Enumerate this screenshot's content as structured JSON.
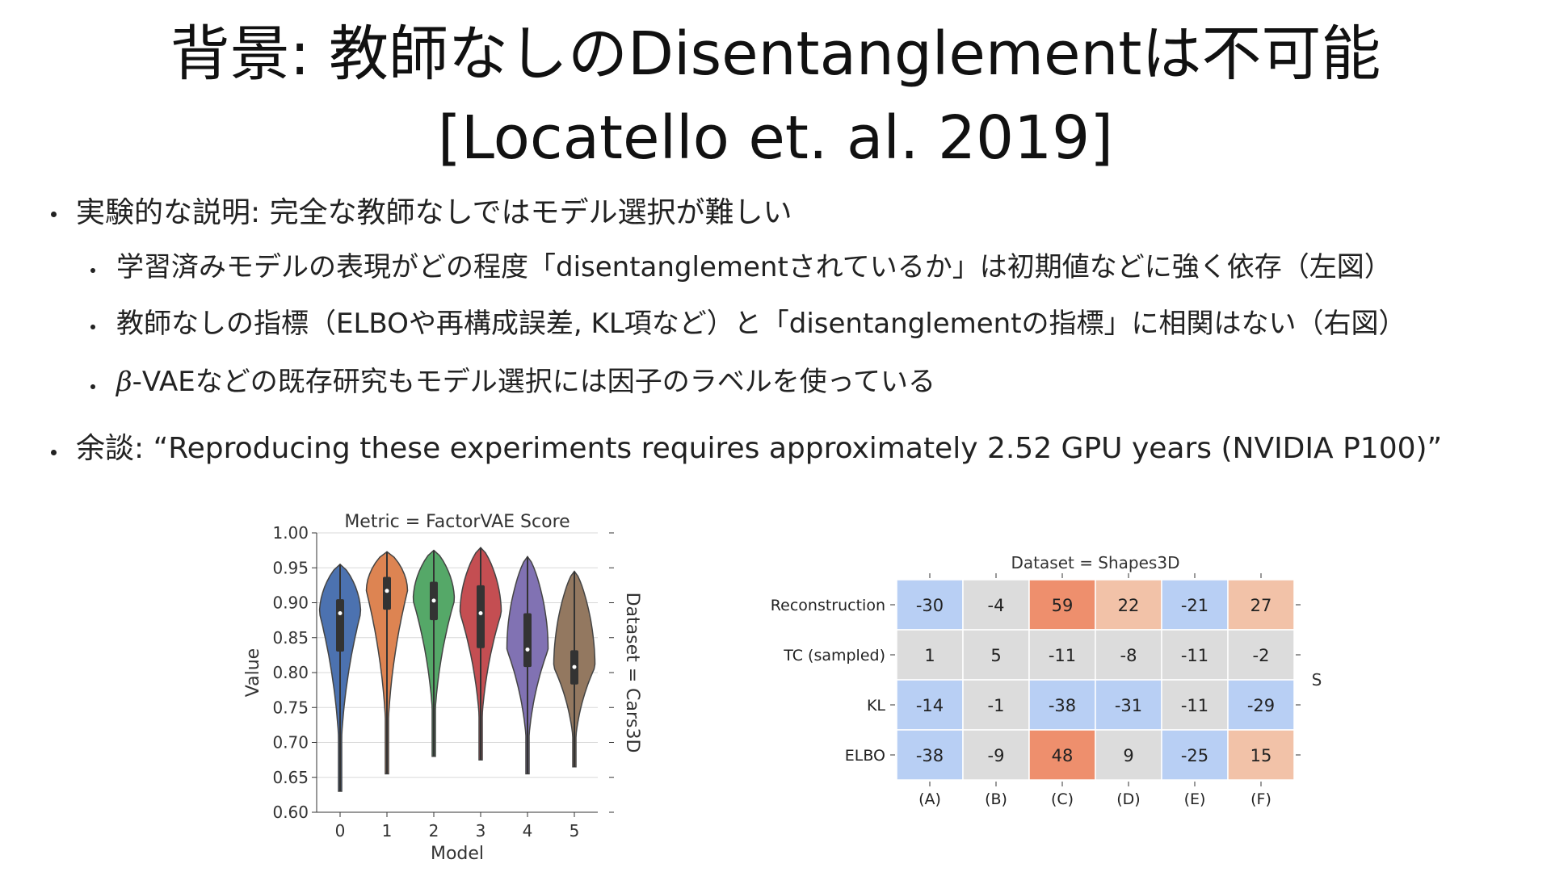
{
  "slide": {
    "title_line1": "背景: 教師なしのDisentanglementは不可能",
    "title_line2": "[Locatello et. al. 2019]",
    "bullets": {
      "b1": "実験的な説明: 完全な教師なしではモデル選択が難しい",
      "b1_1": "学習済みモデルの表現がどの程度「disentanglementされているか」は初期値などに強く依存（左図）",
      "b1_2": "教師なしの指標（ELBOや再構成誤差, KL項など）と「disentanglementの指標」に相関はない（右図）",
      "b1_3_beta": "β",
      "b1_3_rest": "-VAEなどの既存研究もモデル選択には因子のラベルを使っている",
      "b2": "余談: “Reproducing these experiments requires approximately 2.52 GPU years (NVIDIA P100)”"
    }
  },
  "chart_data": [
    {
      "type": "violin",
      "title": "Metric = FactorVAE Score",
      "xlabel": "Model",
      "ylabel": "Value",
      "right_label": "Dataset = Cars3D",
      "categories": [
        "0",
        "1",
        "2",
        "3",
        "4",
        "5"
      ],
      "ylim": [
        0.6,
        1.0
      ],
      "yticks": [
        "0.60",
        "0.65",
        "0.70",
        "0.75",
        "0.80",
        "0.85",
        "0.90",
        "0.95",
        "1.00"
      ],
      "grid": true,
      "colors": [
        "#4c72b0",
        "#dd8452",
        "#55a868",
        "#c44e52",
        "#8172b3",
        "#937860"
      ],
      "series": [
        {
          "min": 0.63,
          "q1": 0.83,
          "median": 0.885,
          "q3": 0.905,
          "max": 0.955
        },
        {
          "min": 0.655,
          "q1": 0.89,
          "median": 0.917,
          "q3": 0.937,
          "max": 0.973
        },
        {
          "min": 0.68,
          "q1": 0.875,
          "median": 0.903,
          "q3": 0.93,
          "max": 0.975
        },
        {
          "min": 0.675,
          "q1": 0.835,
          "median": 0.885,
          "q3": 0.925,
          "max": 0.979
        },
        {
          "min": 0.655,
          "q1": 0.808,
          "median": 0.833,
          "q3": 0.885,
          "max": 0.966
        },
        {
          "min": 0.665,
          "q1": 0.783,
          "median": 0.808,
          "q3": 0.832,
          "max": 0.945
        }
      ]
    },
    {
      "type": "heatmap",
      "title": "Dataset = Shapes3D",
      "right_label": "S",
      "rows": [
        "Reconstruction",
        "TC (sampled)",
        "KL",
        "ELBO"
      ],
      "columns": [
        "(A)",
        "(B)",
        "(C)",
        "(D)",
        "(E)",
        "(F)"
      ],
      "values": [
        [
          -30,
          -4,
          59,
          22,
          -21,
          27
        ],
        [
          1,
          5,
          -11,
          -8,
          -11,
          -2
        ],
        [
          -14,
          -1,
          -38,
          -31,
          -11,
          -29
        ],
        [
          -38,
          -9,
          48,
          9,
          -25,
          15
        ]
      ],
      "colors": {
        "negative": "#b8cff4",
        "neutral": "#dcdcdc",
        "weak_positive": "#f2c2a8",
        "strong_positive": "#ee8f6d"
      }
    }
  ]
}
